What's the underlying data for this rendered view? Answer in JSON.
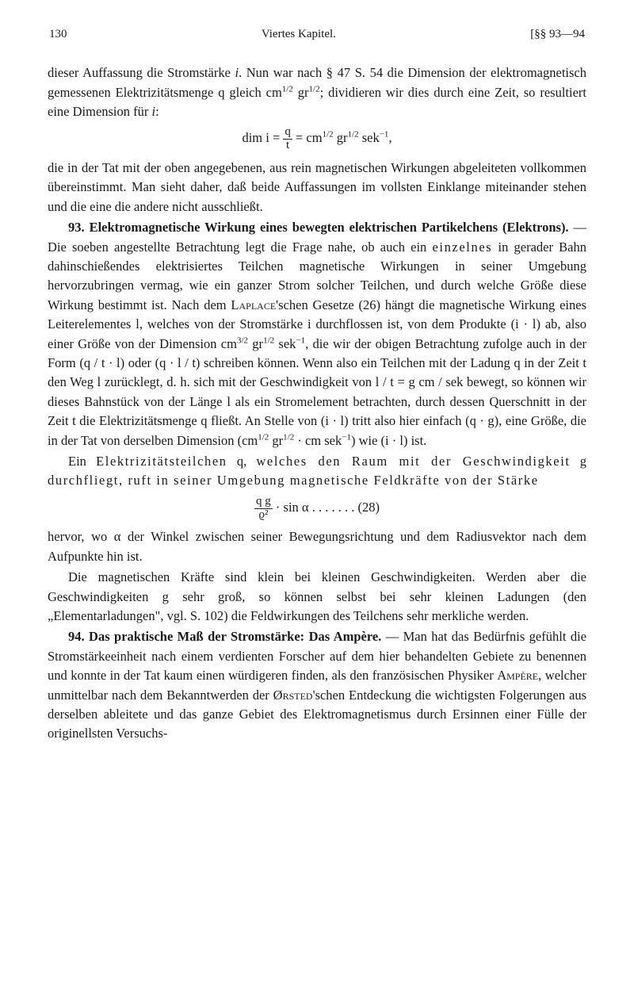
{
  "header": {
    "page_num": "130",
    "chapter": "Viertes Kapitel.",
    "sections": "[§§ 93—94"
  },
  "p1a": "dieser Auffassung die Stromstärke ",
  "p1_i": "i",
  "p1b": ". Nun war nach § 47 S. 54 die Dimension der elektromagnetisch gemessenen Elektrizitätsmenge q gleich cm",
  "p1_sup1": "1/2",
  "p1c": " gr",
  "p1_sup2": "1/2",
  "p1d": "; dividieren wir dies durch eine Zeit, so resultiert eine Dimension für ",
  "p1_i2": "i",
  "p1e": ":",
  "eq1a": "dim i = ",
  "eq1_num": "q",
  "eq1_den": "t",
  "eq1b": " = cm",
  "eq1s1": "1/2",
  "eq1c": " gr",
  "eq1s2": "1/2",
  "eq1d": " sek",
  "eq1s3": "−1",
  "eq1e": ",",
  "p2": "die in der Tat mit der oben angegebenen, aus rein magnetischen Wirkungen abgeleiteten vollkommen übereinstimmt. Man sieht daher, daß beide Auffassungen im vollsten Einklange miteinander stehen und die eine die andere nicht ausschließt.",
  "s93_num": "93.",
  "s93_title": " Elektromagnetische Wirkung eines bewegten elektrischen Partikelchens (Elektrons).",
  "p3a": " — Die soeben angestellte Betrachtung legt die Frage nahe, ob auch ein ",
  "p3_sp1": "einzelnes",
  "p3b": " in gerader Bahn dahin­schießendes elektrisiertes Teilchen magnetische Wirkungen in seiner Umgebung hervorzubringen vermag, wie ein ganzer Strom solcher Teilchen, und durch welche Größe diese Wirkung bestimmt ist. Nach dem ",
  "p3_name1": "Laplace",
  "p3c": "'schen Gesetze (26) hängt die magnetische Wirkung eines Leiterelementes l, welches von der Stromstärke i durchflossen ist, von dem Produkte (i · l) ab, also einer Größe von der Dimension cm",
  "p3_sup1": "3/2",
  "p3d": " gr",
  "p3_sup2": "1/2",
  "p3e": " sek",
  "p3_sup3": "−1",
  "p3f": ", die wir der obigen Betrachtung zufolge auch in der Form (q / t · l) oder (q · l / t) schreiben können. Wenn also ein Teilchen mit der Ladung q in der Zeit t den Weg l zurücklegt, d. h. sich mit der Geschwindigkeit von l / t = g cm / sek bewegt, so können wir dieses Bahnstück von der Länge l als ein Stromelement betrachten, durch dessen Querschnitt in der Zeit t die Elektrizitätsmenge q fließt. An Stelle von (i · l) tritt also hier einfach (q · g), eine Größe, die in der Tat von derselben Dimension (cm",
  "p3_sup4": "1/2",
  "p3g": " gr",
  "p3_sup5": "1/2",
  "p3h": " · cm sek",
  "p3_sup6": "−1",
  "p3i": ") wie (i · l) ist.",
  "p4a": "Ein ",
  "p4_sp1": "Elektrizitätsteilchen",
  "p4b": " q, ",
  "p4_sp2": "welches den Raum mit der Geschwindigkeit",
  "p4c": " g ",
  "p4_sp3": "durchfliegt, ruft in seiner Umgebung magnetische Feldkräfte von der Stärke",
  "eq2_num": "q g",
  "eq2_den": "ϱ²",
  "eq2b": " · sin α",
  "eq2_dots": "  .  .  .  .  .  .  .  ",
  "eq2_ref": "(28)",
  "p5a": "hervor, wo α der Winkel zwischen seiner Bewegungsrichtung und dem Radiusvektor nach dem Aufpunkte hin ist.",
  "p6a": "Die magnetischen Kräfte sind klein bei kleinen Geschwindig­keiten. Werden aber die Geschwindigkeiten g sehr groß, so können selbst bei sehr kleinen Ladungen (den „Elementarladungen\", vgl. S. 102) die Feldwirkungen des Teilchens sehr merkliche werden.",
  "s94_num": "94.",
  "s94_title": " Das praktische Maß der Stromstärke: Das Ampère.",
  "p7a": " — Man hat das Bedürfnis gefühlt die Stromstärkeeinheit nach einem verdienten Forscher auf dem hier behandelten Gebiete zu benennen und konnte in der Tat kaum einen würdigeren finden, als den französischen Physiker ",
  "p7_name1": "Ampère",
  "p7b": ", welcher unmittelbar nach dem Bekanntwerden der ",
  "p7_name2": "Ørsted",
  "p7c": "'schen Entdeckung die wichtigsten Folge­rungen aus derselben ableitete und das ganze Gebiet des Elektro­magnetismus durch Ersinnen einer Fülle der originellsten Versuchs-"
}
